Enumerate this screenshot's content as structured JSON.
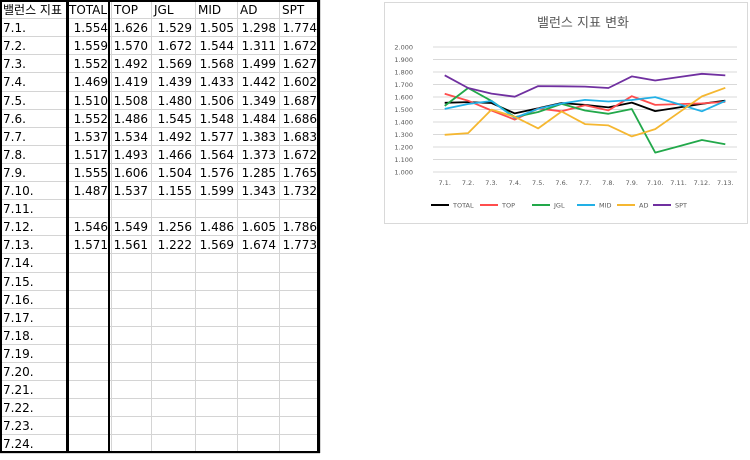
{
  "sheet": {
    "headers": [
      "밸런스 지표",
      "TOTAL",
      "TOP",
      "JGL",
      "MID",
      "AD",
      "SPT"
    ],
    "rows": [
      [
        "7.1.",
        "1.554",
        "1.626",
        "1.529",
        "1.505",
        "1.298",
        "1.774"
      ],
      [
        "7.2.",
        "1.559",
        "1.570",
        "1.672",
        "1.544",
        "1.311",
        "1.672"
      ],
      [
        "7.3.",
        "1.552",
        "1.492",
        "1.569",
        "1.568",
        "1.499",
        "1.627"
      ],
      [
        "7.4.",
        "1.469",
        "1.419",
        "1.439",
        "1.433",
        "1.442",
        "1.602"
      ],
      [
        "7.5.",
        "1.510",
        "1.508",
        "1.480",
        "1.506",
        "1.349",
        "1.687"
      ],
      [
        "7.6.",
        "1.552",
        "1.486",
        "1.545",
        "1.548",
        "1.484",
        "1.686"
      ],
      [
        "7.7.",
        "1.537",
        "1.534",
        "1.492",
        "1.577",
        "1.383",
        "1.683"
      ],
      [
        "7.8.",
        "1.517",
        "1.493",
        "1.466",
        "1.564",
        "1.373",
        "1.672"
      ],
      [
        "7.9.",
        "1.555",
        "1.606",
        "1.504",
        "1.576",
        "1.285",
        "1.765"
      ],
      [
        "7.10.",
        "1.487",
        "1.537",
        "1.155",
        "1.599",
        "1.343",
        "1.732"
      ],
      [
        "7.11.",
        "",
        "",
        "",
        "",
        "",
        ""
      ],
      [
        "7.12.",
        "1.546",
        "1.549",
        "1.256",
        "1.486",
        "1.605",
        "1.786"
      ],
      [
        "7.13.",
        "1.571",
        "1.561",
        "1.222",
        "1.569",
        "1.674",
        "1.773"
      ],
      [
        "7.14.",
        "",
        "",
        "",
        "",
        "",
        ""
      ],
      [
        "7.15.",
        "",
        "",
        "",
        "",
        "",
        ""
      ],
      [
        "7.16.",
        "",
        "",
        "",
        "",
        "",
        ""
      ],
      [
        "7.17.",
        "",
        "",
        "",
        "",
        "",
        ""
      ],
      [
        "7.18.",
        "",
        "",
        "",
        "",
        "",
        ""
      ],
      [
        "7.19.",
        "",
        "",
        "",
        "",
        "",
        ""
      ],
      [
        "7.20.",
        "",
        "",
        "",
        "",
        "",
        ""
      ],
      [
        "7.21.",
        "",
        "",
        "",
        "",
        "",
        ""
      ],
      [
        "7.22.",
        "",
        "",
        "",
        "",
        "",
        ""
      ],
      [
        "7.23.",
        "",
        "",
        "",
        "",
        "",
        ""
      ],
      [
        "7.24.",
        "",
        "",
        "",
        "",
        "",
        ""
      ]
    ]
  },
  "chart_data": {
    "type": "line",
    "title": "밸런스 지표 변화",
    "categories": [
      "7.1.",
      "7.2.",
      "7.3.",
      "7.4.",
      "7.5.",
      "7.6.",
      "7.7.",
      "7.8.",
      "7.9.",
      "7.10.",
      "7.11.",
      "7.12.",
      "7.13."
    ],
    "ylim": [
      1.0,
      2.0
    ],
    "yticks": [
      "2.000",
      "1.900",
      "1.800",
      "1.700",
      "1.600",
      "1.500",
      "1.400",
      "1.300",
      "1.200",
      "1.100",
      "1.000"
    ],
    "grid": true,
    "legend_position": "bottom",
    "series": [
      {
        "name": "TOTAL",
        "color": "#000000",
        "values": [
          1.554,
          1.559,
          1.552,
          1.469,
          1.51,
          1.552,
          1.537,
          1.517,
          1.555,
          1.487,
          1.516,
          1.546,
          1.571
        ]
      },
      {
        "name": "TOP",
        "color": "#ff4d4d",
        "values": [
          1.626,
          1.57,
          1.492,
          1.419,
          1.508,
          1.486,
          1.534,
          1.493,
          1.606,
          1.537,
          1.543,
          1.549,
          1.561
        ]
      },
      {
        "name": "JGL",
        "color": "#22a84a",
        "values": [
          1.529,
          1.672,
          1.569,
          1.439,
          1.48,
          1.545,
          1.492,
          1.466,
          1.504,
          1.155,
          1.205,
          1.256,
          1.222
        ]
      },
      {
        "name": "MID",
        "color": "#22b0e6",
        "values": [
          1.505,
          1.544,
          1.568,
          1.433,
          1.506,
          1.548,
          1.577,
          1.564,
          1.576,
          1.599,
          1.543,
          1.486,
          1.569
        ]
      },
      {
        "name": "AD",
        "color": "#f5b731",
        "values": [
          1.298,
          1.311,
          1.499,
          1.442,
          1.349,
          1.484,
          1.383,
          1.373,
          1.285,
          1.343,
          1.474,
          1.605,
          1.674
        ]
      },
      {
        "name": "SPT",
        "color": "#7030a0",
        "values": [
          1.774,
          1.672,
          1.627,
          1.602,
          1.687,
          1.686,
          1.683,
          1.672,
          1.765,
          1.732,
          1.759,
          1.786,
          1.773
        ]
      }
    ]
  }
}
